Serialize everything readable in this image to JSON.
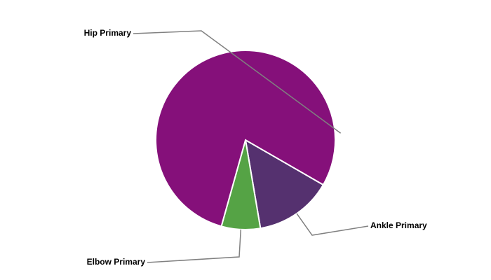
{
  "chart_data": {
    "type": "pie",
    "categories": [
      "Ankle Primary",
      "Elbow Primary",
      "Hip Primary"
    ],
    "values": [
      14,
      7,
      79
    ],
    "colors": [
      "#55316f",
      "#55a345",
      "#85107a"
    ]
  }
}
